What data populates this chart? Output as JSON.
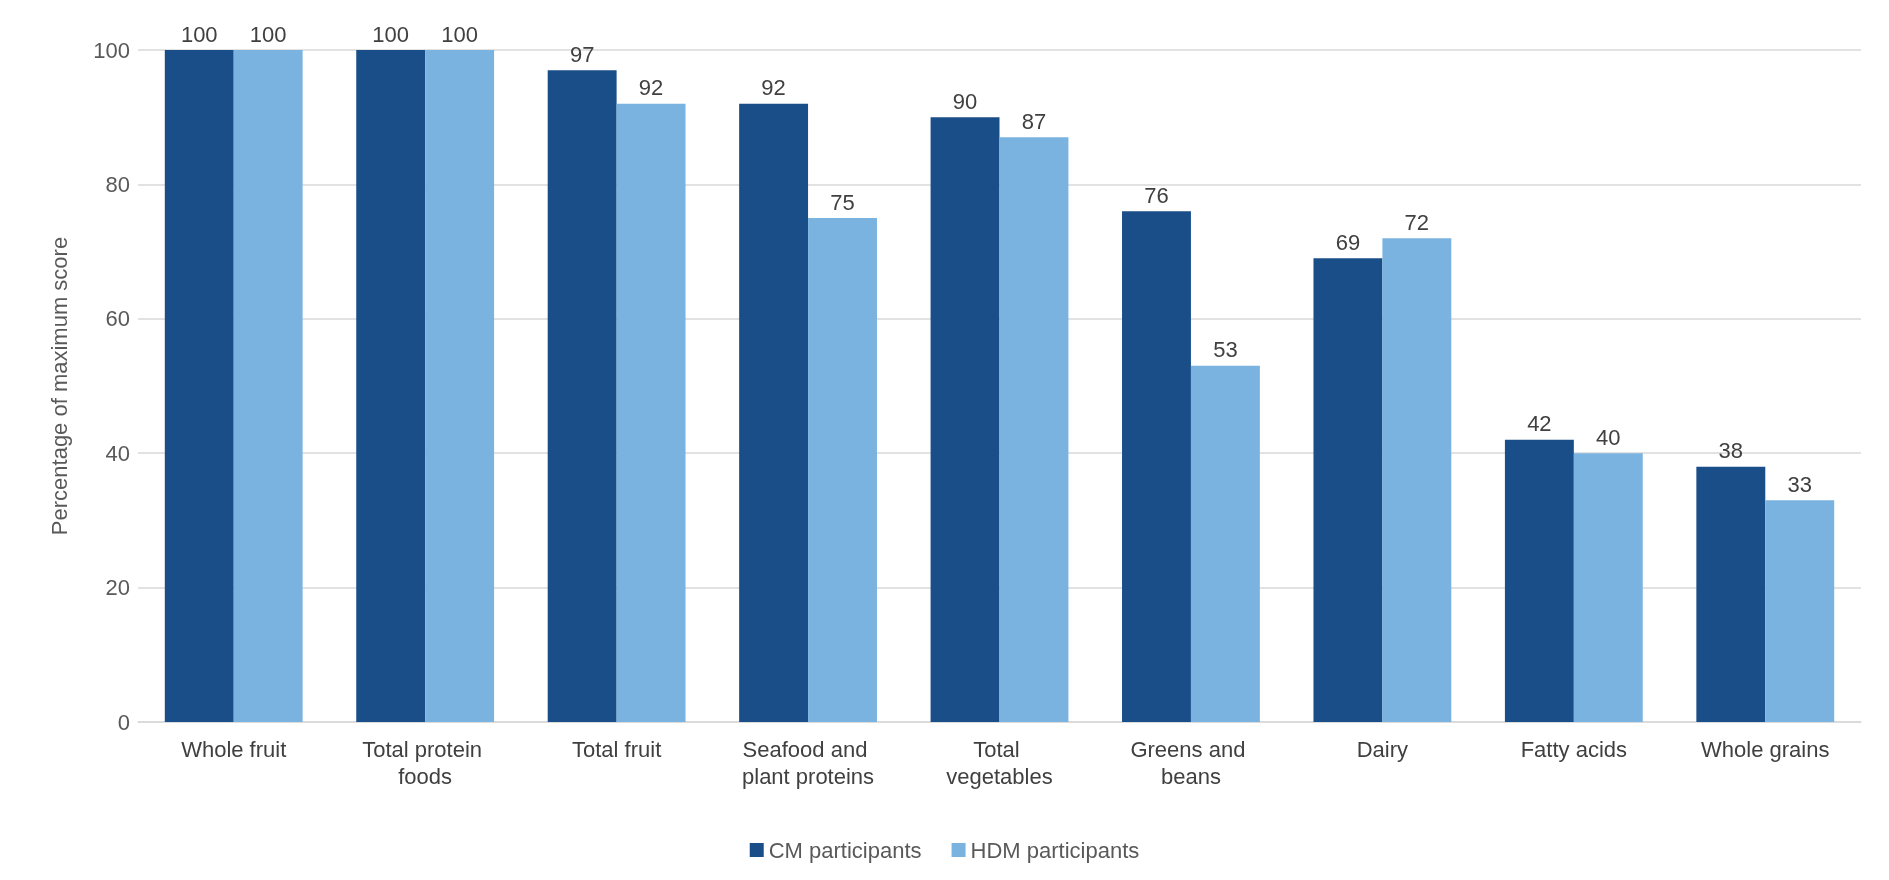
{
  "chart_data": {
    "type": "bar",
    "ylabel": "Percentage of maximum score",
    "categories": [
      "Whole fruit",
      "Total protein foods",
      "Total fruit",
      "Seafood and plant proteins",
      "Total vegetables",
      "Greens and beans",
      "Dairy",
      "Fatty acids",
      "Whole grains"
    ],
    "series": [
      {
        "name": "CM participants",
        "color": "#1a4e89",
        "values": [
          100,
          100,
          97,
          92,
          90,
          76,
          69,
          42,
          38
        ]
      },
      {
        "name": "HDM participants",
        "color": "#7ab3e0",
        "values": [
          100,
          100,
          92,
          75,
          87,
          53,
          72,
          40,
          33
        ]
      }
    ],
    "ylim": [
      0,
      100
    ],
    "yticks": [
      0,
      20,
      40,
      60,
      80,
      100
    ],
    "grid": "y",
    "legend": "bottom",
    "data_labels": true
  }
}
